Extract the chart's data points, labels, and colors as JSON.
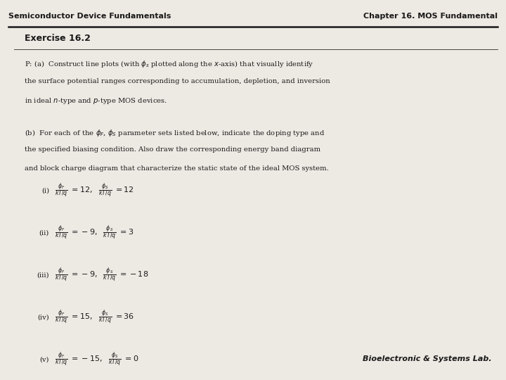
{
  "header_left": "Semiconductor Device Fundamentals",
  "header_right": "Chapter 16. MOS Fundamental",
  "footer_right": "Bioelectronic & Systems Lab.",
  "exercise_title": "Exercise 16.2",
  "items": [
    {
      "label": "(i)",
      "phi_F_val": "12",
      "phi_S_val": "12"
    },
    {
      "label": "(ii)",
      "phi_F_val": "-9",
      "phi_S_val": "3"
    },
    {
      "label": "(iii)",
      "phi_F_val": "-9",
      "phi_S_val": "-18"
    },
    {
      "label": "(iv)",
      "phi_F_val": "15",
      "phi_S_val": "36"
    },
    {
      "label": "(v)",
      "phi_F_val": "-15",
      "phi_S_val": "0"
    }
  ],
  "bg_color": "#ede9e3",
  "text_color": "#1a1a1a",
  "header_line_color": "#1a1a1a",
  "exercise_line_color": "#444444",
  "header_fontsize": 8.0,
  "exercise_fontsize": 9.0,
  "body_fontsize": 7.2,
  "item_fontsize": 8.0,
  "footer_fontsize": 8.0
}
